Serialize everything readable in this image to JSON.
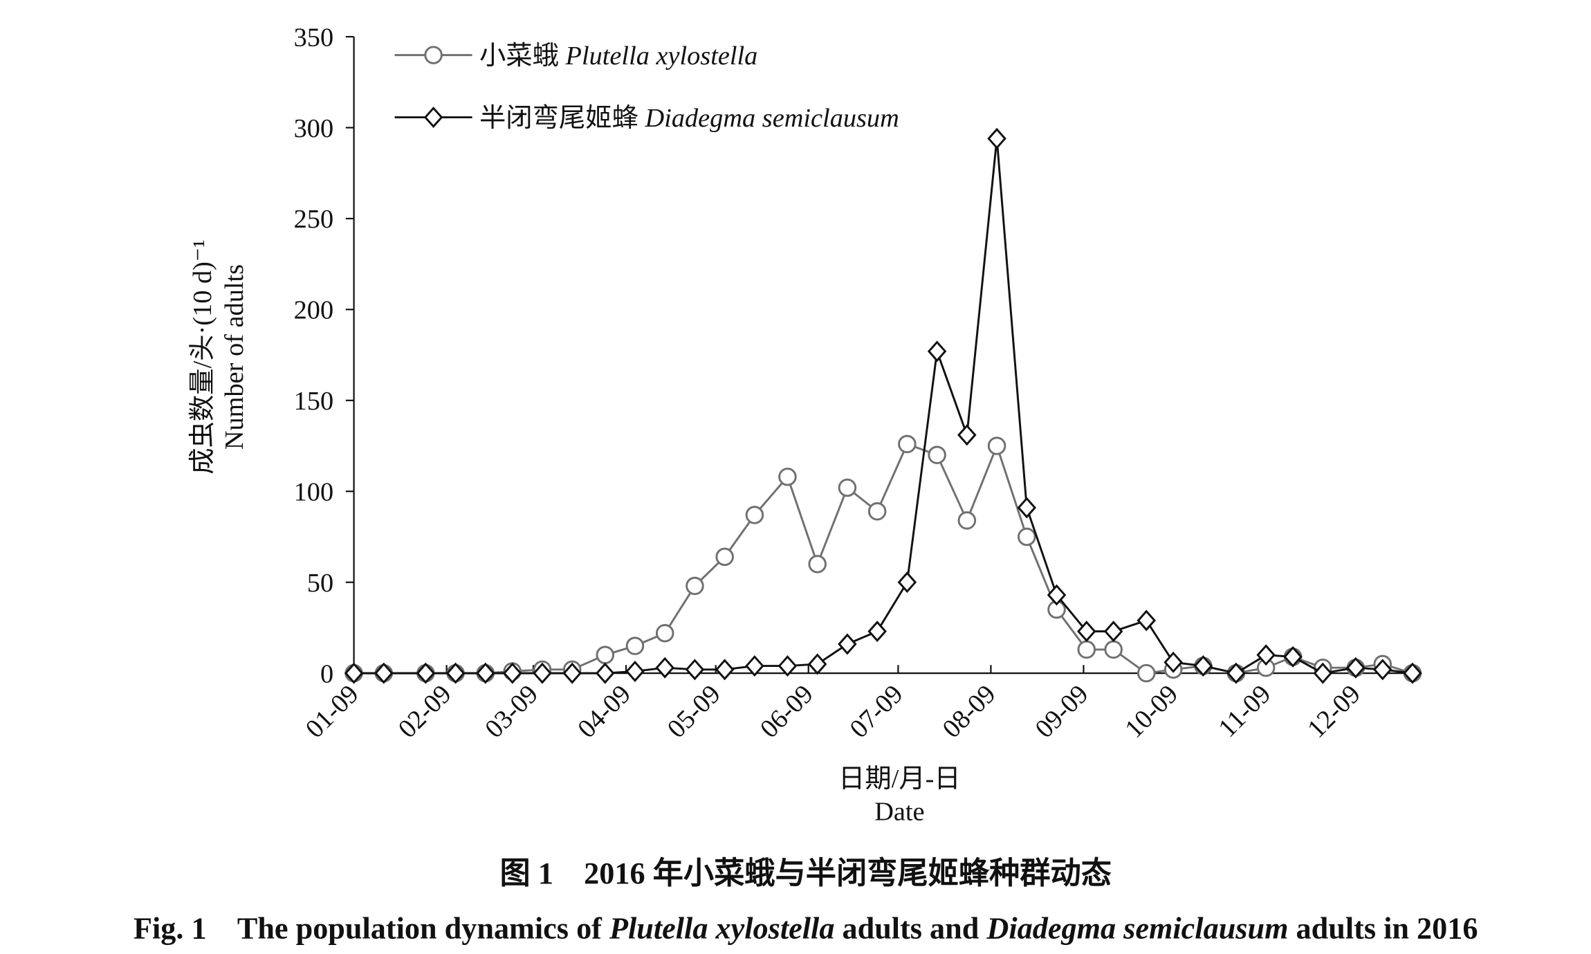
{
  "chart_data": {
    "type": "line",
    "x": [
      "01-09",
      "01-19",
      "02-02",
      "02-12",
      "02-22",
      "03-02",
      "03-12",
      "03-22",
      "04-02",
      "04-12",
      "04-22",
      "05-02",
      "05-12",
      "05-22",
      "06-02",
      "06-12",
      "06-22",
      "07-02",
      "07-12",
      "07-22",
      "08-01",
      "08-11",
      "08-21",
      "08-31",
      "09-10",
      "09-19",
      "09-30",
      "10-09",
      "10-19",
      "10-30",
      "11-09",
      "11-18",
      "11-28",
      "12-09",
      "12-18",
      "12-28"
    ],
    "series": [
      {
        "name": "小菜蛾",
        "latin": "Plutella xylostella",
        "color": "#707070",
        "marker": "circle",
        "values": [
          0,
          0,
          0,
          0,
          0,
          1,
          2,
          2,
          10,
          15,
          22,
          48,
          64,
          87,
          108,
          60,
          102,
          89,
          126,
          120,
          84,
          125,
          75,
          35,
          13,
          13,
          0,
          2,
          4,
          0,
          3,
          9,
          3,
          3,
          5,
          0
        ]
      },
      {
        "name": "半闭弯尾姬蜂",
        "latin": "Diadegma semiclausum",
        "color": "#111111",
        "marker": "diamond",
        "values": [
          0,
          0,
          0,
          0,
          0,
          0,
          0,
          0,
          0,
          1,
          3,
          2,
          2,
          4,
          4,
          5,
          16,
          23,
          50,
          177,
          131,
          294,
          91,
          43,
          23,
          23,
          29,
          6,
          4,
          0,
          10,
          9,
          0,
          3,
          2,
          0
        ]
      }
    ],
    "xlim": [
      "01-09",
      "12-28"
    ],
    "xticks": [
      "01-09",
      "02-09",
      "03-09",
      "04-09",
      "05-09",
      "06-09",
      "07-09",
      "08-09",
      "09-09",
      "10-09",
      "11-09",
      "12-09"
    ],
    "ylim": [
      0,
      350
    ],
    "yticks": [
      0,
      50,
      100,
      150,
      200,
      250,
      300,
      350
    ],
    "y_label": [
      "成虫数量/头·(10 d)⁻¹",
      "Number of adults"
    ],
    "x_label": [
      "日期/月-日",
      "Date"
    ],
    "caption_cn": "图 1　2016 年小菜蛾与半闭弯尾姬蜂种群动态",
    "caption_en": [
      {
        "text": "Fig. 1　The population dynamics of ",
        "italic": false
      },
      {
        "text": "Plutella xylostella",
        "italic": true
      },
      {
        "text": " adults and ",
        "italic": false
      },
      {
        "text": "Diadegma semiclausum",
        "italic": true
      },
      {
        "text": " adults in 2016",
        "italic": false
      }
    ]
  }
}
